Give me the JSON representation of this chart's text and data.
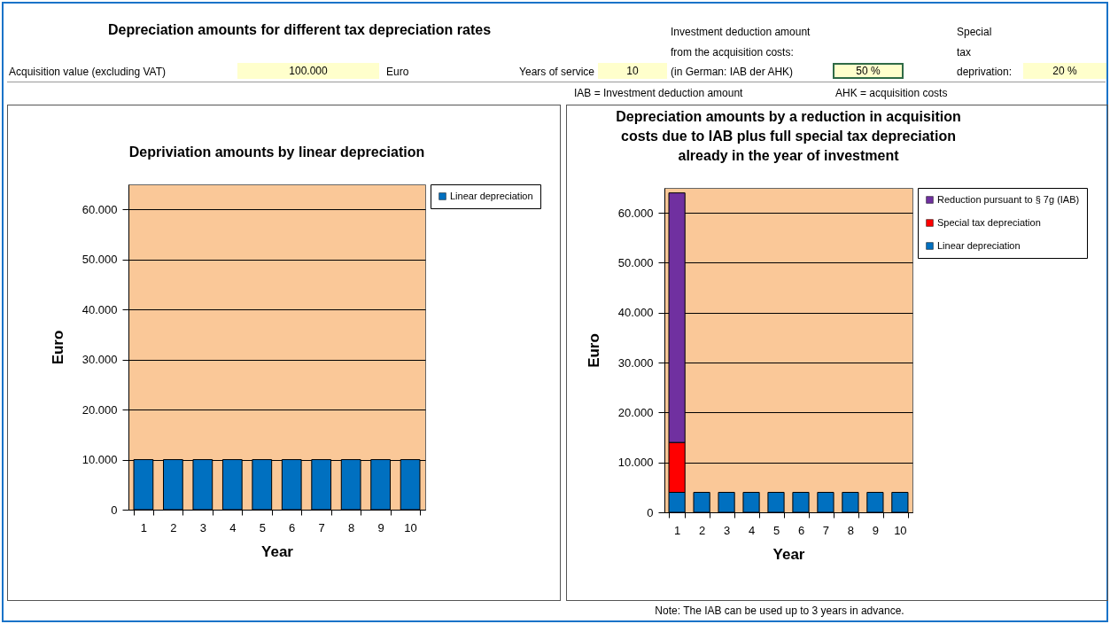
{
  "chart_data": [
    {
      "type": "other",
      "title": "Depreciation amounts for different tax depreciation rates",
      "annotations": [
        "Acquisition value (excluding VAT)",
        "100.000",
        "Euro",
        "Years of service",
        "10",
        "Investment deduction amount",
        "from the acquisition costs:",
        "(in German:  IAB der AHK)",
        "50 %",
        "Special",
        "tax",
        "deprivation:",
        "20 %",
        "IAB = Investment deduction amount",
        "AHK = acquisition costs"
      ]
    },
    {
      "type": "bar",
      "title": "Depriviation amounts by linear depreciation",
      "xlabel": "Year",
      "ylabel": "Euro",
      "categories": [
        "1",
        "2",
        "3",
        "4",
        "5",
        "6",
        "7",
        "8",
        "9",
        "10"
      ],
      "series": [
        {
          "name": "Linear depreciation",
          "color": "#0070c0",
          "values": [
            10000,
            10000,
            10000,
            10000,
            10000,
            10000,
            10000,
            10000,
            10000,
            10000
          ]
        }
      ],
      "ylim": [
        0,
        65000
      ],
      "yticks": [
        {
          "value": 0,
          "label": "0"
        },
        {
          "value": 10000,
          "label": "10.000"
        },
        {
          "value": 20000,
          "label": "20.000"
        },
        {
          "value": 30000,
          "label": "30.000"
        },
        {
          "value": 40000,
          "label": "40.000"
        },
        {
          "value": 50000,
          "label": "50.000"
        },
        {
          "value": 60000,
          "label": "60.000"
        }
      ],
      "grid": "y",
      "legend": "right"
    },
    {
      "type": "bar",
      "title": "Depreciation amounts by a reduction in acquisition costs due to IAB plus full special tax depreciation already in the year of investment",
      "xlabel": "Year",
      "ylabel": "Euro",
      "categories": [
        "1",
        "2",
        "3",
        "4",
        "5",
        "6",
        "7",
        "8",
        "9",
        "10"
      ],
      "stacked": true,
      "series": [
        {
          "name": "Linear depreciation",
          "color": "#0070c0",
          "values": [
            4000,
            4000,
            4000,
            4000,
            4000,
            4000,
            4000,
            4000,
            4000,
            4000
          ]
        },
        {
          "name": "Special tax depreciation",
          "color": "#ff0000",
          "values": [
            10000,
            null,
            null,
            null,
            null,
            null,
            null,
            null,
            null,
            null
          ]
        },
        {
          "name": "Reduction pursuant to § 7g (IAB)",
          "color": "#7030a0",
          "values": [
            50000,
            null,
            null,
            null,
            null,
            null,
            null,
            null,
            null,
            null
          ]
        }
      ],
      "ylim": [
        0,
        65000
      ],
      "yticks": [
        {
          "value": 0,
          "label": "0"
        },
        {
          "value": 10000,
          "label": "10.000"
        },
        {
          "value": 20000,
          "label": "20.000"
        },
        {
          "value": 30000,
          "label": "30.000"
        },
        {
          "value": 40000,
          "label": "40.000"
        },
        {
          "value": 50000,
          "label": "50.000"
        },
        {
          "value": 60000,
          "label": "60.000"
        }
      ],
      "grid": "y",
      "legend": "right",
      "annotations": [
        "Note: The IAB can be used up to 3 years in advance."
      ]
    }
  ]
}
